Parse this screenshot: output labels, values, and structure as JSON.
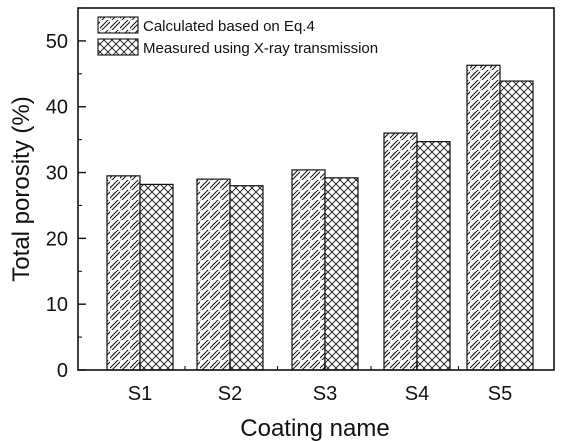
{
  "chart_data": {
    "type": "bar",
    "title": "",
    "xlabel": "Coating name",
    "ylabel": "Total porosity (%)",
    "categories": [
      "S1",
      "S2",
      "S3",
      "S4",
      "S5"
    ],
    "ylim": [
      0,
      55
    ],
    "yticks": [
      0,
      10,
      20,
      30,
      40,
      50
    ],
    "grid": false,
    "legend_position": "top-left",
    "series": [
      {
        "name": "Calculated based on Eq.4",
        "values": [
          29.5,
          29.0,
          30.4,
          36.0,
          46.3
        ],
        "pattern": "diagonal-hatch"
      },
      {
        "name": "Measured using X-ray transmission",
        "values": [
          28.2,
          28.0,
          29.2,
          34.7,
          43.9
        ],
        "pattern": "crosshatch"
      }
    ],
    "colors": {
      "axis": "#111111",
      "bar_stroke": "#111111",
      "bar_fill": "#ffffff"
    }
  }
}
